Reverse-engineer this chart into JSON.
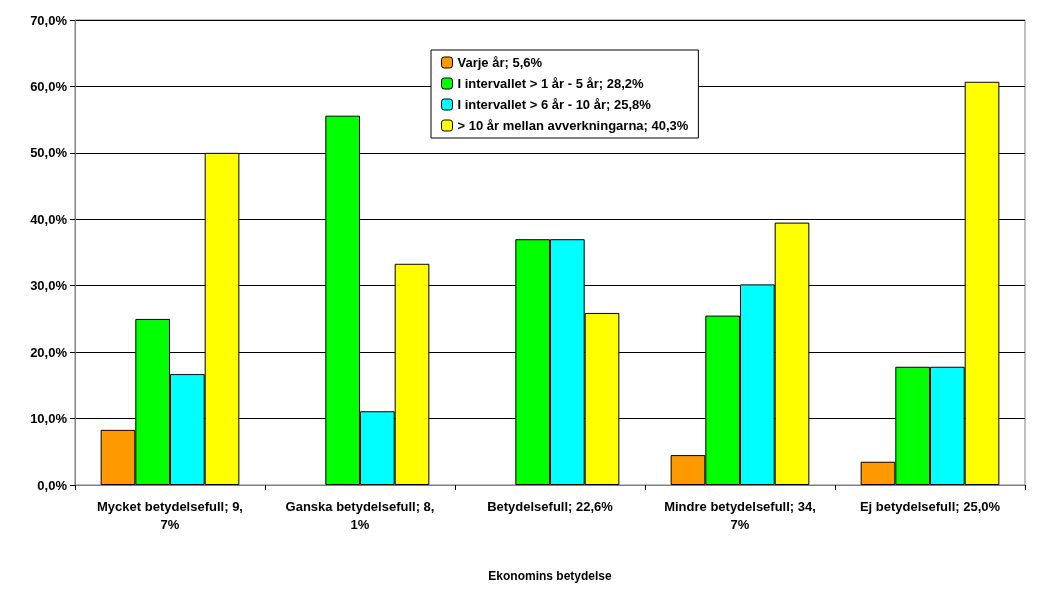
{
  "chart_data": {
    "type": "bar",
    "xlabel": "Ekonomins betydelse",
    "categories": [
      "Mycket betydelsefull; 9,7%",
      "Ganska betydelsefull; 8,1%",
      "Betydelsefull; 22,6%",
      "Mindre betydelsefull; 34,7%",
      "Ej betydelsefull; 25,0%"
    ],
    "series": [
      {
        "name": "Varje år; 5,6%",
        "color": "#ff9900",
        "values": [
          8.3,
          null,
          null,
          4.5,
          3.5
        ]
      },
      {
        "name": "I intervallet > 1 år - 5 år; 28,2%",
        "color": "#00ff00",
        "values": [
          25.0,
          55.6,
          37.0,
          25.5,
          17.8
        ]
      },
      {
        "name": "I intervallet > 6 år - 10 år; 25,8%",
        "color": "#00ffff",
        "values": [
          16.7,
          11.1,
          37.0,
          30.2,
          17.8
        ]
      },
      {
        "name": "> 10 år mellan avverkningarna; 40,3%",
        "color": "#ffff00",
        "values": [
          50.0,
          33.3,
          25.9,
          39.5,
          60.7
        ]
      }
    ],
    "ylim": [
      0,
      70
    ],
    "yticks": [
      {
        "value": 0,
        "label": "0,0%"
      },
      {
        "value": 10,
        "label": "10,0%"
      },
      {
        "value": 20,
        "label": "20,0%"
      },
      {
        "value": 30,
        "label": "30,0%"
      },
      {
        "value": 40,
        "label": "40,0%"
      },
      {
        "value": 50,
        "label": "50,0%"
      },
      {
        "value": 60,
        "label": "60,0%"
      },
      {
        "value": 70,
        "label": "70,0%"
      }
    ],
    "grid": "y",
    "legend": "top"
  }
}
